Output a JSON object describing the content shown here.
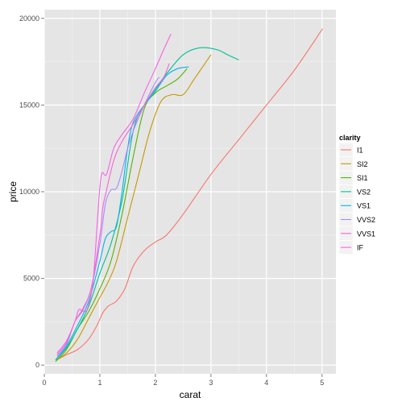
{
  "chart_data": {
    "type": "line",
    "xlabel": "carat",
    "ylabel": "price",
    "xlim": [
      0.0,
      5.25
    ],
    "ylim": [
      -500,
      20500
    ],
    "x_ticks": [
      0,
      1,
      2,
      3,
      4,
      5
    ],
    "x_tick_labels": [
      "0",
      "1",
      "2",
      "3",
      "4",
      "5"
    ],
    "y_ticks": [
      0,
      5000,
      10000,
      15000,
      20000
    ],
    "y_tick_labels": [
      "0",
      "5000",
      "10000",
      "15000",
      "20000"
    ],
    "grid": true,
    "legend": {
      "title": "clarity",
      "position": "right"
    },
    "series": [
      {
        "name": "I1",
        "color": "#F8766D",
        "points": [
          [
            0.22,
            300
          ],
          [
            0.4,
            600
          ],
          [
            0.6,
            900
          ],
          [
            0.8,
            1500
          ],
          [
            0.95,
            2300
          ],
          [
            1.05,
            3000
          ],
          [
            1.15,
            3400
          ],
          [
            1.3,
            3700
          ],
          [
            1.45,
            4400
          ],
          [
            1.6,
            5700
          ],
          [
            1.8,
            6600
          ],
          [
            2.0,
            7100
          ],
          [
            2.2,
            7500
          ],
          [
            2.5,
            8700
          ],
          [
            3.0,
            11000
          ],
          [
            3.5,
            13000
          ],
          [
            4.0,
            15000
          ],
          [
            4.5,
            17000
          ],
          [
            5.01,
            19400
          ]
        ]
      },
      {
        "name": "SI2",
        "color": "#C49A00",
        "points": [
          [
            0.22,
            300
          ],
          [
            0.4,
            700
          ],
          [
            0.6,
            1500
          ],
          [
            0.8,
            2700
          ],
          [
            1.0,
            3900
          ],
          [
            1.15,
            4800
          ],
          [
            1.3,
            6000
          ],
          [
            1.5,
            8500
          ],
          [
            1.7,
            11000
          ],
          [
            1.9,
            13500
          ],
          [
            2.1,
            15200
          ],
          [
            2.3,
            15600
          ],
          [
            2.5,
            15600
          ],
          [
            2.7,
            16500
          ],
          [
            3.0,
            17900
          ]
        ]
      },
      {
        "name": "SI1",
        "color": "#53B400",
        "points": [
          [
            0.2,
            200
          ],
          [
            0.4,
            900
          ],
          [
            0.6,
            2100
          ],
          [
            0.8,
            3100
          ],
          [
            1.0,
            4400
          ],
          [
            1.2,
            6000
          ],
          [
            1.4,
            8700
          ],
          [
            1.6,
            12000
          ],
          [
            1.8,
            14800
          ],
          [
            2.0,
            15700
          ],
          [
            2.2,
            16100
          ],
          [
            2.4,
            16500
          ],
          [
            2.57,
            17100
          ]
        ]
      },
      {
        "name": "VS2",
        "color": "#00C094",
        "points": [
          [
            0.2,
            300
          ],
          [
            0.4,
            1000
          ],
          [
            0.6,
            2100
          ],
          [
            0.8,
            3400
          ],
          [
            1.0,
            5300
          ],
          [
            1.2,
            7000
          ],
          [
            1.4,
            9500
          ],
          [
            1.6,
            13500
          ],
          [
            1.8,
            15000
          ],
          [
            2.0,
            15900
          ],
          [
            2.2,
            16800
          ],
          [
            2.5,
            17900
          ],
          [
            2.8,
            18300
          ],
          [
            3.1,
            18200
          ],
          [
            3.3,
            17900
          ],
          [
            3.5,
            17600
          ]
        ]
      },
      {
        "name": "VS1",
        "color": "#00B6EB",
        "points": [
          [
            0.23,
            400
          ],
          [
            0.4,
            1100
          ],
          [
            0.6,
            2300
          ],
          [
            0.8,
            3700
          ],
          [
            1.0,
            6000
          ],
          [
            1.1,
            7300
          ],
          [
            1.2,
            7700
          ],
          [
            1.3,
            8000
          ],
          [
            1.4,
            10000
          ],
          [
            1.5,
            12500
          ],
          [
            1.6,
            14000
          ],
          [
            1.8,
            15000
          ],
          [
            2.0,
            15800
          ],
          [
            2.2,
            16700
          ],
          [
            2.4,
            17100
          ],
          [
            2.6,
            17200
          ]
        ]
      },
      {
        "name": "VVS2",
        "color": "#A58AFF",
        "points": [
          [
            0.23,
            500
          ],
          [
            0.4,
            1200
          ],
          [
            0.55,
            2500
          ],
          [
            0.7,
            3200
          ],
          [
            0.85,
            4500
          ],
          [
            1.0,
            7000
          ],
          [
            1.1,
            9300
          ],
          [
            1.2,
            10100
          ],
          [
            1.3,
            10200
          ],
          [
            1.4,
            11200
          ],
          [
            1.5,
            12500
          ],
          [
            1.6,
            13500
          ],
          [
            1.8,
            15000
          ],
          [
            2.0,
            16300
          ],
          [
            2.07,
            16600
          ]
        ]
      },
      {
        "name": "VVS1",
        "color": "#FB61D7",
        "points": [
          [
            0.23,
            600
          ],
          [
            0.4,
            1300
          ],
          [
            0.55,
            2500
          ],
          [
            0.7,
            3300
          ],
          [
            0.85,
            4500
          ],
          [
            1.0,
            7500
          ],
          [
            1.05,
            9000
          ],
          [
            1.1,
            9800
          ],
          [
            1.25,
            11800
          ],
          [
            1.4,
            12900
          ],
          [
            1.6,
            13900
          ],
          [
            1.8,
            15000
          ],
          [
            2.0,
            16000
          ],
          [
            2.15,
            16600
          ],
          [
            2.25,
            17400
          ]
        ]
      },
      {
        "name": "IF",
        "color": "#F564E3",
        "points": [
          [
            0.23,
            700
          ],
          [
            0.4,
            1400
          ],
          [
            0.55,
            2500
          ],
          [
            0.62,
            3200
          ],
          [
            0.7,
            3100
          ],
          [
            0.78,
            3300
          ],
          [
            0.88,
            4900
          ],
          [
            0.97,
            9000
          ],
          [
            1.03,
            11000
          ],
          [
            1.12,
            11000
          ],
          [
            1.25,
            12500
          ],
          [
            1.4,
            13300
          ],
          [
            1.6,
            14200
          ],
          [
            1.8,
            15700
          ],
          [
            2.0,
            17100
          ],
          [
            2.15,
            18200
          ],
          [
            2.28,
            19100
          ]
        ]
      }
    ]
  }
}
